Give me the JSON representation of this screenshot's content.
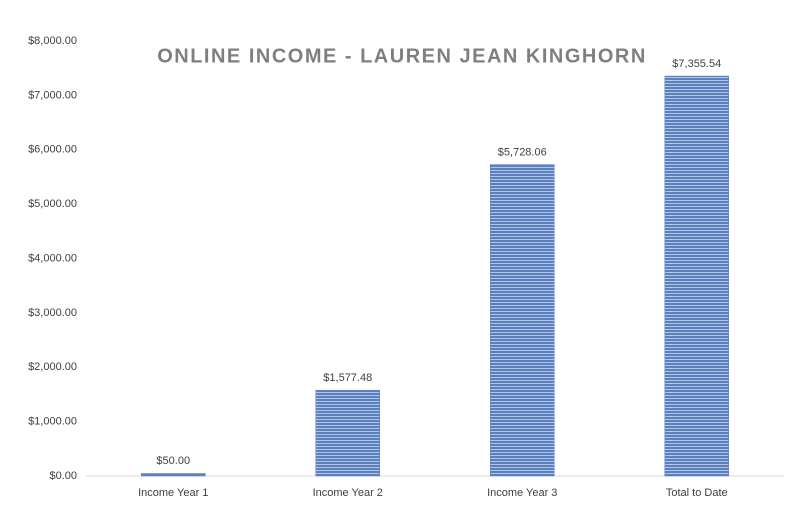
{
  "chart_data": {
    "type": "bar",
    "title": "ONLINE INCOME - LAUREN JEAN KINGHORN",
    "categories": [
      "Income Year 1",
      "Income Year 2",
      "Income Year 3",
      "Total to Date"
    ],
    "values": [
      50,
      1577.48,
      5728.06,
      7355.54
    ],
    "value_labels": [
      "$50.00",
      "$1,577.48",
      "$5,728.06",
      "$7,355.54"
    ],
    "color": "#5b80c2",
    "ylim": [
      0,
      8000
    ],
    "yticks": [
      {
        "value": 0,
        "label": "$0.00"
      },
      {
        "value": 1000,
        "label": "$1,000.00"
      },
      {
        "value": 2000,
        "label": "$2,000.00"
      },
      {
        "value": 3000,
        "label": "$3,000.00"
      },
      {
        "value": 4000,
        "label": "$4,000.00"
      },
      {
        "value": 5000,
        "label": "$5,000.00"
      },
      {
        "value": 6000,
        "label": "$6,000.00"
      },
      {
        "value": 7000,
        "label": "$7,000.00"
      },
      {
        "value": 8000,
        "label": "$8,000.00"
      }
    ],
    "grid": false
  }
}
